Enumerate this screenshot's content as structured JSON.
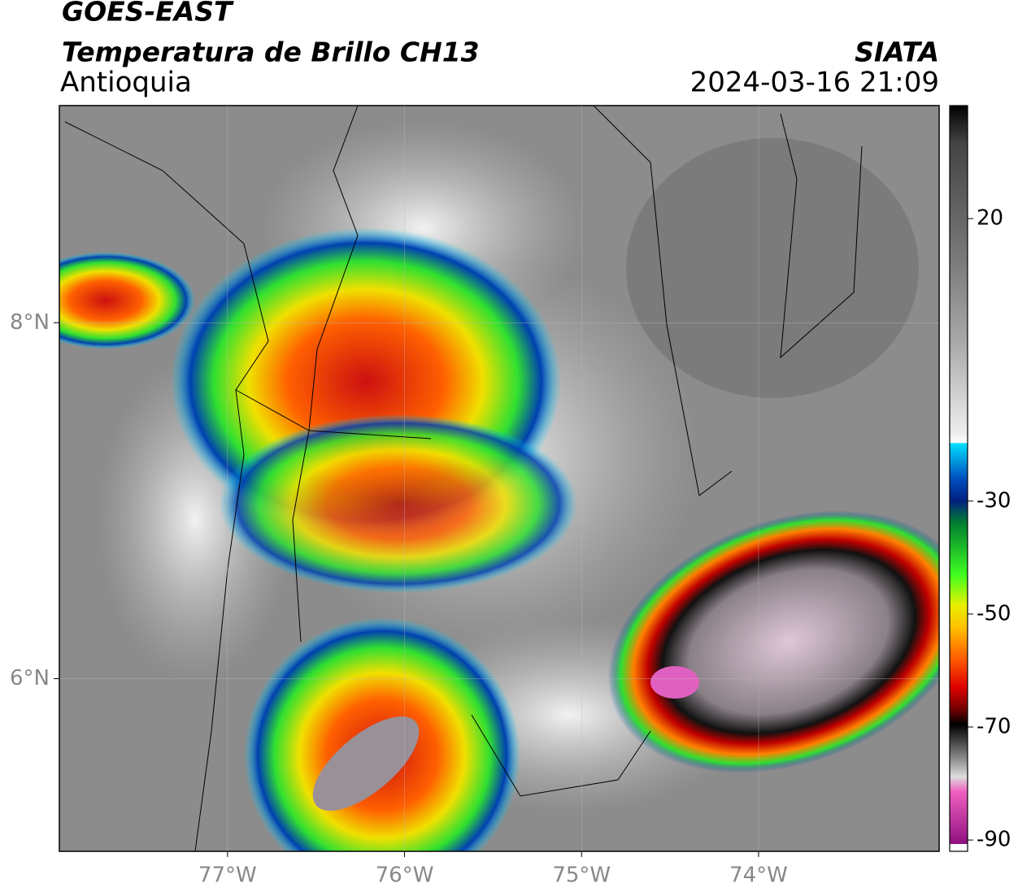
{
  "header": {
    "title": "GOES-EAST",
    "subtitle": "Temperatura de Brillo CH13",
    "region": "Antioquia",
    "source": "SIATA",
    "datetime": "2024-03-16 21:09"
  },
  "map": {
    "xlim": [
      -77.95,
      -72.98
    ],
    "ylim": [
      5.03,
      9.22
    ],
    "xticks": [
      {
        "value": -77,
        "label": "77°W"
      },
      {
        "value": -76,
        "label": "76°W"
      },
      {
        "value": -75,
        "label": "75°W"
      },
      {
        "value": -74,
        "label": "74°W"
      }
    ],
    "yticks": [
      {
        "value": 6,
        "label": "6°N"
      },
      {
        "value": 8,
        "label": "8°N"
      }
    ],
    "grid": true
  },
  "colorbar": {
    "lim": [
      -92,
      40
    ],
    "ticks": [
      20,
      -30,
      -50,
      -70,
      -90
    ]
  }
}
